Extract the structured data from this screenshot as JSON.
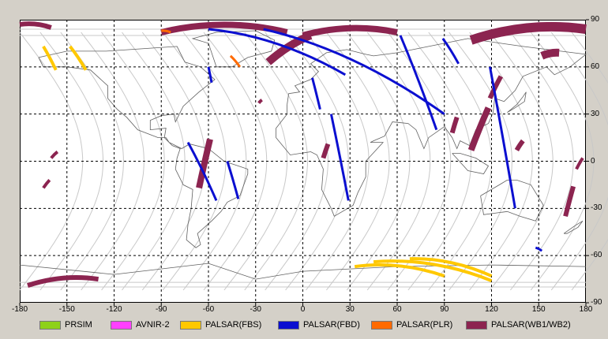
{
  "x_ticks": [
    "-180",
    "-150",
    "-120",
    "-90",
    "-60",
    "-30",
    "0",
    "30",
    "60",
    "90",
    "120",
    "150",
    "180"
  ],
  "y_ticks": [
    "90",
    "60",
    "30",
    "0",
    "-30",
    "-60",
    "-90"
  ],
  "legend": [
    {
      "label": "PRSIM",
      "color": "#8ed11a"
    },
    {
      "label": "AVNIR-2",
      "color": "#ff40ff"
    },
    {
      "label": "PALSAR(FBS)",
      "color": "#ffc800"
    },
    {
      "label": "PALSAR(FBD)",
      "color": "#0b0fd0"
    },
    {
      "label": "PALSAR(PLR)",
      "color": "#ff6a00"
    },
    {
      "label": "PALSAR(WB1/WB2)",
      "color": "#8c2450"
    }
  ],
  "chart_data": {
    "type": "map",
    "x_range": [
      -180,
      180
    ],
    "y_range": [
      -90,
      90
    ],
    "grid": "dashed every 30 degrees",
    "legend_position": "bottom",
    "series": [
      {
        "name": "PALSAR(WB1/WB2)",
        "color": "#8c2450",
        "segments": [
          {
            "lon": [
              -180,
              -160
            ],
            "lat": [
              87,
              85
            ],
            "width": 3
          },
          {
            "lon": [
              -90,
              -10
            ],
            "lat": [
              82,
              82
            ],
            "width": 4
          },
          {
            "lon": [
              -22,
              5
            ],
            "lat": [
              63,
              80
            ],
            "width": 5
          },
          {
            "lon": [
              0,
              60
            ],
            "lat": [
              80,
              82
            ],
            "width": 4
          },
          {
            "lon": [
              107,
              180
            ],
            "lat": [
              77,
              84
            ],
            "width": 6
          },
          {
            "lon": [
              152,
              163
            ],
            "lat": [
              67,
              69
            ],
            "width": 5
          },
          {
            "lon": [
              119,
              126
            ],
            "lat": [
              40,
              54
            ],
            "width": 3
          },
          {
            "lon": [
              95,
              98
            ],
            "lat": [
              18,
              28
            ],
            "width": 3
          },
          {
            "lon": [
              107,
              118
            ],
            "lat": [
              7,
              34
            ],
            "width": 4
          },
          {
            "lon": [
              136,
              140
            ],
            "lat": [
              7,
              13
            ],
            "width": 3
          },
          {
            "lon": [
              13,
              16
            ],
            "lat": [
              2,
              11
            ],
            "width": 3
          },
          {
            "lon": [
              -66,
              -59
            ],
            "lat": [
              -17,
              14
            ],
            "width": 4
          },
          {
            "lon": [
              -160,
              -156
            ],
            "lat": [
              2,
              6
            ],
            "width": 2
          },
          {
            "lon": [
              -165,
              -161
            ],
            "lat": [
              -17,
              -12
            ],
            "width": 2
          },
          {
            "lon": [
              -28,
              -26
            ],
            "lat": [
              37,
              39
            ],
            "width": 2
          },
          {
            "lon": [
              167,
              172
            ],
            "lat": [
              -35,
              -16
            ],
            "width": 3
          },
          {
            "lon": [
              174,
              178
            ],
            "lat": [
              -5,
              2
            ],
            "width": 2
          },
          {
            "lon": [
              -175,
              -130
            ],
            "lat": [
              -79,
              -75
            ],
            "width": 3
          }
        ]
      },
      {
        "name": "PALSAR(FBD)",
        "color": "#0b0fd0",
        "segments": [
          {
            "lon": [
              -60,
              27
            ],
            "lat": [
              84,
              55
            ],
            "width": 1.5
          },
          {
            "lon": [
              -25,
              90
            ],
            "lat": [
              84,
              30
            ],
            "width": 1.5
          },
          {
            "lon": [
              62,
              85
            ],
            "lat": [
              80,
              20
            ],
            "width": 1.5
          },
          {
            "lon": [
              89,
              99
            ],
            "lat": [
              78,
              62
            ],
            "width": 1.5
          },
          {
            "lon": [
              -60,
              -58
            ],
            "lat": [
              60,
              50
            ],
            "width": 1.5
          },
          {
            "lon": [
              6,
              11
            ],
            "lat": [
              53,
              33
            ],
            "width": 1.5
          },
          {
            "lon": [
              18,
              29
            ],
            "lat": [
              30,
              -25
            ],
            "width": 1.5
          },
          {
            "lon": [
              -73,
              -55
            ],
            "lat": [
              12,
              -25
            ],
            "width": 1.5
          },
          {
            "lon": [
              -48,
              -41
            ],
            "lat": [
              0,
              -24
            ],
            "width": 1.5
          },
          {
            "lon": [
              119,
              135
            ],
            "lat": [
              60,
              -30
            ],
            "width": 1.5
          },
          {
            "lon": [
              148,
              152
            ],
            "lat": [
              -55,
              -57
            ],
            "width": 1.5
          }
        ]
      },
      {
        "name": "PALSAR(FBS)",
        "color": "#ffc800",
        "segments": [
          {
            "lon": [
              -165,
              -157
            ],
            "lat": [
              73,
              58
            ],
            "width": 2
          },
          {
            "lon": [
              -148,
              -138
            ],
            "lat": [
              73,
              58
            ],
            "width": 2
          },
          {
            "lon": [
              33,
              90
            ],
            "lat": [
              -67,
              -73
            ],
            "width": 2
          },
          {
            "lon": [
              45,
              120
            ],
            "lat": [
              -64,
              -76
            ],
            "width": 2
          },
          {
            "lon": [
              68,
              120
            ],
            "lat": [
              -62,
              -73
            ],
            "width": 2
          }
        ]
      },
      {
        "name": "PALSAR(PLR)",
        "color": "#ff6a00",
        "segments": [
          {
            "lon": [
              -46,
              -40
            ],
            "lat": [
              67,
              60
            ],
            "width": 1.5
          },
          {
            "lon": [
              -90,
              -84
            ],
            "lat": [
              83,
              82
            ],
            "width": 1.5
          }
        ]
      }
    ]
  }
}
